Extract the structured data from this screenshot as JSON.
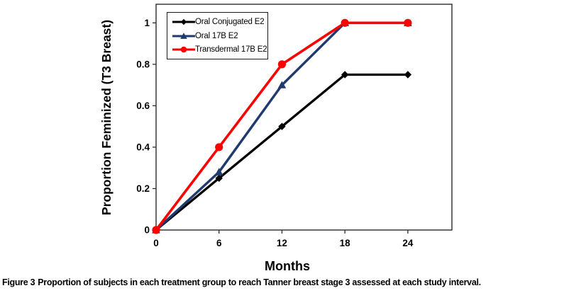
{
  "figure": {
    "caption_prefix": "Figure 3",
    "caption_body": "Proportion of subjects in each treatment group to reach Tanner breast stage 3 assessed at each study interval."
  },
  "chart_data": {
    "type": "line",
    "title": "",
    "xlabel": "Months",
    "ylabel": "Proportion Feminized (T3 Breast)",
    "x": [
      0,
      6,
      12,
      18,
      24
    ],
    "xticks": [
      0,
      6,
      12,
      18,
      24
    ],
    "yticks": [
      0,
      0.2,
      0.4,
      0.6,
      0.8,
      1
    ],
    "xlim": [
      0,
      28.2
    ],
    "ylim": [
      0,
      1.09
    ],
    "grid": false,
    "legend_position": "top-left",
    "axis_color": "#2a2a2a",
    "series": [
      {
        "name": "Oral Conjugated E2",
        "color": "#000000",
        "marker": "diamond",
        "values": [
          0,
          0.25,
          0.5,
          0.75,
          0.75
        ]
      },
      {
        "name": "Oral 17B E2",
        "color": "#1E3A6E",
        "marker": "triangle",
        "values": [
          0,
          0.28,
          0.7,
          1,
          1
        ]
      },
      {
        "name": "Transdermal 17B E2",
        "color": "#FF0000",
        "marker": "circle",
        "values": [
          0,
          0.4,
          0.8,
          1,
          1
        ]
      }
    ]
  }
}
